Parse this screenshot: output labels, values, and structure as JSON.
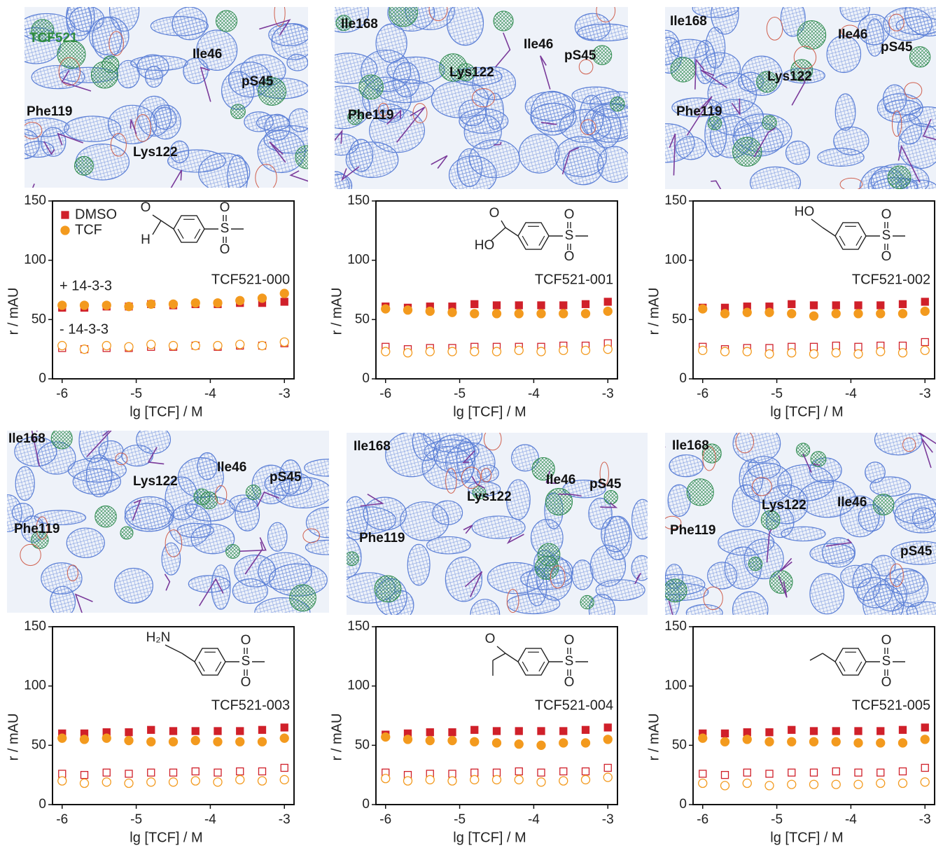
{
  "chart_data": [
    {
      "type": "scatter",
      "compound": "TCF521-000",
      "structure_labels": [
        "O",
        "H",
        "O",
        "S",
        "O"
      ],
      "legend": "upper left",
      "annotations": [
        "+ 14-3-3",
        "- 14-3-3"
      ],
      "map_labels": [
        {
          "text": "TCF521",
          "color": "#2e8b3e"
        },
        "Ile46",
        "pS45",
        "Phe119",
        "Lys122"
      ],
      "xlabel": "lg [TCF] / M",
      "ylabel": "r / mAU",
      "xlim": [
        -6.13,
        -2.87
      ],
      "xticks": [
        -6,
        -5,
        -4,
        -3
      ],
      "ylim": [
        0,
        150
      ],
      "yticks": [
        0,
        50,
        100,
        150
      ],
      "x": [
        -6,
        -5.7,
        -5.4,
        -5.1,
        -4.8,
        -4.5,
        -4.2,
        -3.9,
        -3.6,
        -3.3,
        -3
      ],
      "series": [
        {
          "name": "DMSO",
          "color": "#d0202a",
          "marker": "square",
          "values": [
            60,
            60,
            61,
            61,
            63,
            62,
            63,
            63,
            64,
            64,
            65
          ],
          "values_minus": [
            26,
            25,
            26,
            26,
            27,
            27,
            28,
            27,
            28,
            28,
            30
          ]
        },
        {
          "name": "TCF",
          "color": "#f39a1e",
          "marker": "circle",
          "values": [
            62,
            62,
            62,
            61,
            63,
            63,
            64,
            64,
            66,
            68,
            72
          ],
          "values_minus": [
            28,
            25,
            28,
            27,
            29,
            28,
            28,
            28,
            29,
            28,
            31
          ]
        }
      ]
    },
    {
      "type": "scatter",
      "compound": "TCF521-001",
      "structure_labels": [
        "O",
        "HO",
        "O",
        "S",
        "O"
      ],
      "map_labels": [
        "Ile168",
        "Ile46",
        "pS45",
        "Lys122",
        "Phe119"
      ],
      "xlabel": "lg [TCF] / M",
      "ylabel": "r / mAU",
      "xlim": [
        -6.13,
        -2.87
      ],
      "xticks": [
        -6,
        -5,
        -4,
        -3
      ],
      "ylim": [
        0,
        150
      ],
      "yticks": [
        0,
        50,
        100,
        150
      ],
      "x": [
        -6,
        -5.7,
        -5.4,
        -5.1,
        -4.8,
        -4.5,
        -4.2,
        -3.9,
        -3.6,
        -3.3,
        -3
      ],
      "series": [
        {
          "color": "#d0202a",
          "marker": "square",
          "values": [
            61,
            60,
            61,
            61,
            63,
            62,
            62,
            62,
            62,
            63,
            65
          ],
          "values_minus": [
            27,
            25,
            26,
            26,
            27,
            27,
            27,
            27,
            28,
            28,
            30
          ]
        },
        {
          "color": "#f39a1e",
          "marker": "circle",
          "values": [
            59,
            58,
            57,
            56,
            55,
            55,
            55,
            55,
            55,
            55,
            57
          ],
          "values_minus": [
            23,
            22,
            23,
            23,
            23,
            23,
            24,
            23,
            24,
            24,
            25
          ]
        }
      ]
    },
    {
      "type": "scatter",
      "compound": "TCF521-002",
      "structure_labels": [
        "HO",
        "O",
        "S",
        "O"
      ],
      "map_labels": [
        "Ile168",
        "Ile46",
        "pS45",
        "Lys122",
        "Phe119"
      ],
      "xlabel": "lg [TCF] / M",
      "ylabel": "r / mAU",
      "xlim": [
        -6.13,
        -2.87
      ],
      "xticks": [
        -6,
        -5,
        -4,
        -3
      ],
      "ylim": [
        0,
        150
      ],
      "yticks": [
        0,
        50,
        100,
        150
      ],
      "x": [
        -6,
        -5.7,
        -5.4,
        -5.1,
        -4.8,
        -4.5,
        -4.2,
        -3.9,
        -3.6,
        -3.3,
        -3
      ],
      "series": [
        {
          "color": "#d0202a",
          "marker": "square",
          "values": [
            60,
            60,
            61,
            61,
            63,
            62,
            62,
            62,
            62,
            63,
            65
          ],
          "values_minus": [
            27,
            25,
            26,
            26,
            27,
            27,
            28,
            27,
            28,
            28,
            31
          ]
        },
        {
          "color": "#f39a1e",
          "marker": "circle",
          "values": [
            59,
            55,
            56,
            56,
            55,
            53,
            55,
            55,
            55,
            55,
            57
          ],
          "values_minus": [
            24,
            23,
            23,
            21,
            22,
            21,
            22,
            21,
            23,
            22,
            24
          ]
        }
      ]
    },
    {
      "type": "scatter",
      "compound": "TCF521-003",
      "structure_labels": [
        "H₂N",
        "O",
        "S",
        "O"
      ],
      "map_labels": [
        "Ile168",
        "Lys122",
        "Ile46",
        "pS45",
        "Phe119"
      ],
      "xlabel": "lg [TCF] / M",
      "ylabel": "r / mAU",
      "xlim": [
        -6.13,
        -2.87
      ],
      "xticks": [
        -6,
        -5,
        -4,
        -3
      ],
      "ylim": [
        0,
        150
      ],
      "yticks": [
        0,
        50,
        100,
        150
      ],
      "x": [
        -6,
        -5.7,
        -5.4,
        -5.1,
        -4.8,
        -4.5,
        -4.2,
        -3.9,
        -3.6,
        -3.3,
        -3
      ],
      "series": [
        {
          "color": "#d0202a",
          "marker": "square",
          "values": [
            60,
            60,
            61,
            61,
            63,
            62,
            62,
            62,
            62,
            63,
            65
          ],
          "values_minus": [
            26,
            25,
            27,
            26,
            27,
            27,
            28,
            27,
            28,
            28,
            31
          ]
        },
        {
          "color": "#f39a1e",
          "marker": "circle",
          "values": [
            56,
            55,
            56,
            54,
            53,
            53,
            54,
            53,
            53,
            53,
            56
          ],
          "values_minus": [
            20,
            18,
            19,
            18,
            19,
            19,
            20,
            19,
            21,
            20,
            21
          ]
        }
      ]
    },
    {
      "type": "scatter",
      "compound": "TCF521-004",
      "structure_labels": [
        "O",
        "O",
        "S",
        "O"
      ],
      "map_labels": [
        "Ile168",
        "Ile46",
        "pS45",
        "Lys122",
        "Phe119"
      ],
      "xlabel": "lg [TCF] / M",
      "ylabel": "r / mAU",
      "xlim": [
        -6.13,
        -2.87
      ],
      "xticks": [
        -6,
        -5,
        -4,
        -3
      ],
      "ylim": [
        0,
        150
      ],
      "yticks": [
        0,
        50,
        100,
        150
      ],
      "x": [
        -6,
        -5.7,
        -5.4,
        -5.1,
        -4.8,
        -4.5,
        -4.2,
        -3.9,
        -3.6,
        -3.3,
        -3
      ],
      "series": [
        {
          "color": "#d0202a",
          "marker": "square",
          "values": [
            59,
            60,
            61,
            61,
            63,
            62,
            62,
            62,
            62,
            63,
            65
          ],
          "values_minus": [
            27,
            25,
            26,
            26,
            27,
            27,
            28,
            27,
            28,
            28,
            31
          ]
        },
        {
          "color": "#f39a1e",
          "marker": "circle",
          "values": [
            57,
            55,
            54,
            54,
            53,
            52,
            51,
            50,
            52,
            52,
            55
          ],
          "values_minus": [
            22,
            20,
            21,
            20,
            21,
            21,
            21,
            19,
            20,
            21,
            23
          ]
        }
      ]
    },
    {
      "type": "scatter",
      "compound": "TCF521-005",
      "structure_labels": [
        "O",
        "S",
        "O"
      ],
      "map_labels": [
        "Ile168",
        "Lys122",
        "Ile46",
        "pS45",
        "Phe119"
      ],
      "xlabel": "lg [TCF] / M",
      "ylabel": "r / mAU",
      "xlim": [
        -6.13,
        -2.87
      ],
      "xticks": [
        -6,
        -5,
        -4,
        -3
      ],
      "ylim": [
        0,
        150
      ],
      "yticks": [
        0,
        50,
        100,
        150
      ],
      "x": [
        -6,
        -5.7,
        -5.4,
        -5.1,
        -4.8,
        -4.5,
        -4.2,
        -3.9,
        -3.6,
        -3.3,
        -3
      ],
      "series": [
        {
          "color": "#d0202a",
          "marker": "square",
          "values": [
            60,
            60,
            61,
            61,
            63,
            62,
            62,
            62,
            62,
            63,
            65
          ],
          "values_minus": [
            26,
            25,
            27,
            26,
            27,
            27,
            28,
            27,
            27,
            28,
            31
          ]
        },
        {
          "color": "#f39a1e",
          "marker": "circle",
          "values": [
            56,
            53,
            55,
            53,
            53,
            53,
            53,
            52,
            52,
            52,
            55
          ],
          "values_minus": [
            18,
            16,
            18,
            16,
            17,
            17,
            17,
            17,
            18,
            18,
            19
          ]
        }
      ]
    }
  ]
}
